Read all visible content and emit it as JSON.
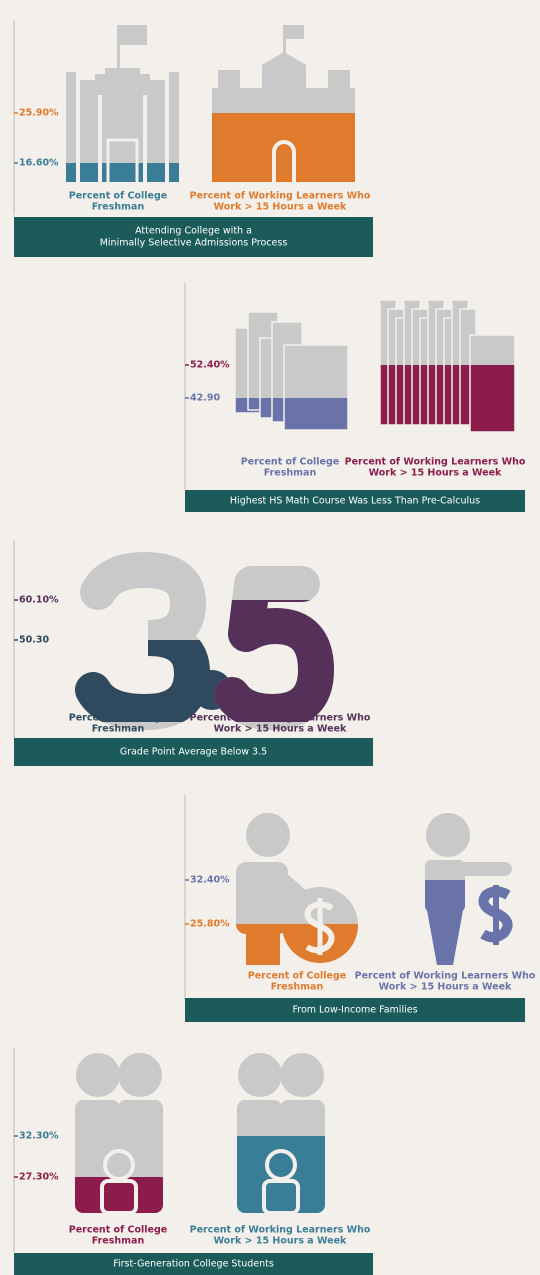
{
  "chart_data": [
    {
      "type": "pictogram",
      "title": [
        "Attending College with a",
        "Minimally Selective Admissions Process"
      ],
      "categories": [
        [
          "Percent of College",
          "Freshman"
        ],
        [
          "Percent of Working Learners Who",
          "Work > 15 Hours a Week"
        ]
      ],
      "values": [
        16.6,
        25.9
      ],
      "value_labels": [
        "16.60%",
        "25.90%"
      ],
      "colors": [
        "#3a7d96",
        "#e07a2c"
      ]
    },
    {
      "type": "pictogram",
      "title": [
        "Highest HS Math Course Was Less Than Pre-Calculus"
      ],
      "categories": [
        [
          "Percent of College",
          "Freshman"
        ],
        [
          "Percent of Working Learners Who",
          "Work > 15 Hours a Week"
        ]
      ],
      "values": [
        42.9,
        52.4
      ],
      "value_labels": [
        "42.90",
        "52.40%"
      ],
      "colors": [
        "#6a72aa",
        "#8c1c4c"
      ]
    },
    {
      "type": "pictogram",
      "title": [
        "Grade Point Average Below 3.5"
      ],
      "categories": [
        [
          "Percent of College",
          "Freshman"
        ],
        [
          "Percent of Working Learners Who",
          "Work > 15 Hours a Week"
        ]
      ],
      "values": [
        50.3,
        60.1
      ],
      "value_labels": [
        "50.30",
        "60.10%"
      ],
      "colors": [
        "#2f4a5f",
        "#553059"
      ]
    },
    {
      "type": "pictogram",
      "title": [
        "From Low-Income Families"
      ],
      "categories": [
        [
          "Percent of College",
          "Freshman"
        ],
        [
          "Percent of Working Learners Who",
          "Work > 15 Hours a Week"
        ]
      ],
      "values": [
        25.8,
        32.4
      ],
      "value_labels": [
        "25.80%",
        "32.40%"
      ],
      "colors": [
        "#e07a2c",
        "#6a72aa"
      ]
    },
    {
      "type": "pictogram",
      "title": [
        "First-Generation College Students"
      ],
      "categories": [
        [
          "Percent of College",
          "Freshman"
        ],
        [
          "Percent of Working Learners Who",
          "Work > 15 Hours a Week"
        ]
      ],
      "values": [
        27.3,
        32.3
      ],
      "value_labels": [
        "27.30%",
        "32.30%"
      ],
      "colors": [
        "#8c1c4c",
        "#3a7d96"
      ]
    }
  ]
}
